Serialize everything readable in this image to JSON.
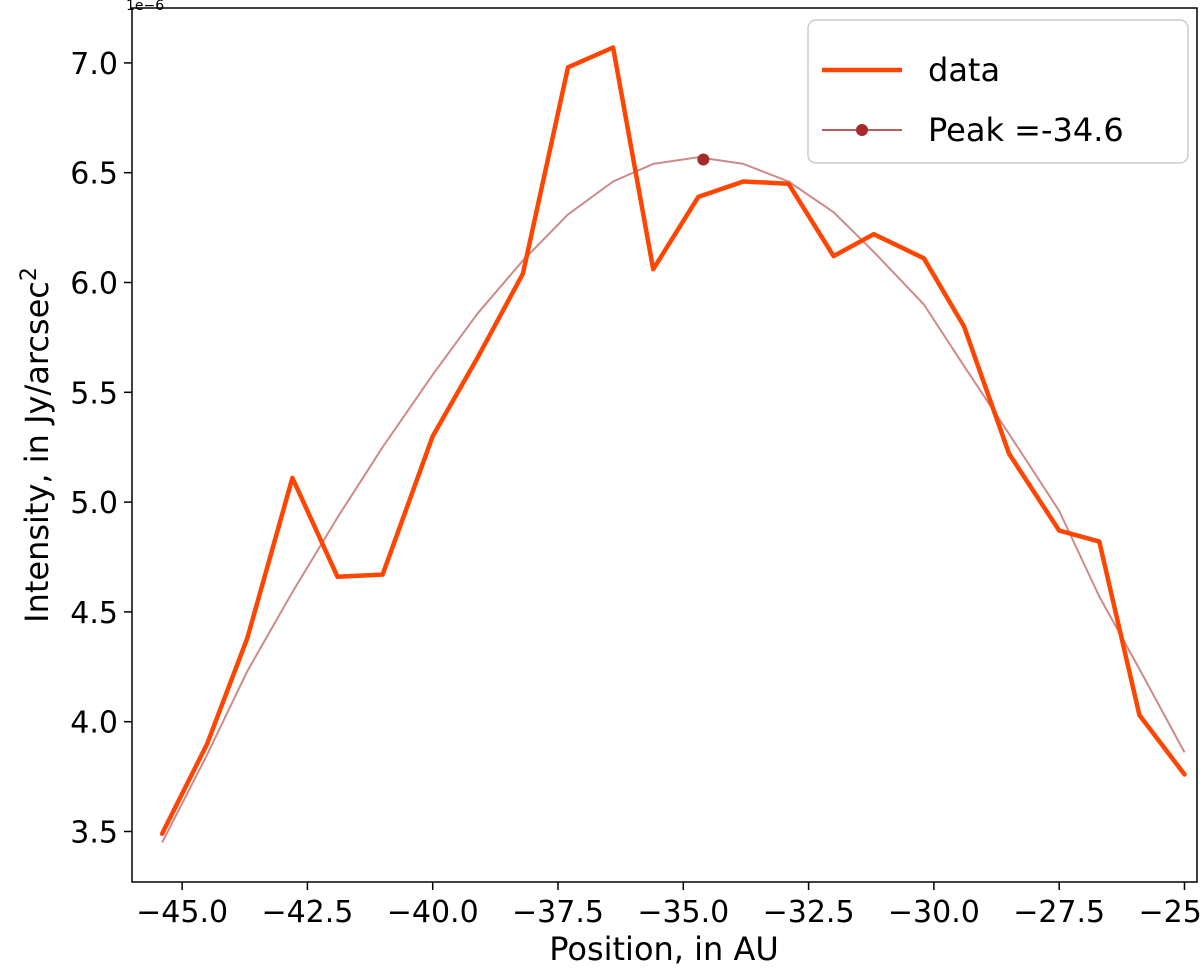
{
  "chart_data": {
    "type": "line",
    "xlabel": "Position, in AU",
    "ylabel": "Intensity, in Jy/arcsec",
    "ylabel_superscript": "2",
    "y_offset_label": "1e−6",
    "xlim": [
      -46.0,
      -24.75
    ],
    "ylim": [
      3.27,
      7.25
    ],
    "x_ticks": [
      -45.0,
      -42.5,
      -40.0,
      -37.5,
      -35.0,
      -32.5,
      -30.0,
      -27.5,
      -25.0
    ],
    "x_tick_labels": [
      "−45.0",
      "−42.5",
      "−40.0",
      "−37.5",
      "−35.0",
      "−32.5",
      "−30.0",
      "−27.5",
      "−25.0"
    ],
    "y_ticks": [
      3.5,
      4.0,
      4.5,
      5.0,
      5.5,
      6.0,
      6.5,
      7.0
    ],
    "y_tick_labels": [
      "3.5",
      "4.0",
      "4.5",
      "5.0",
      "5.5",
      "6.0",
      "6.5",
      "7.0"
    ],
    "grid": false,
    "legend_position": "top-right",
    "series": [
      {
        "name": "data",
        "color": "#ff4500",
        "x": [
          -45.4,
          -44.5,
          -43.7,
          -42.8,
          -41.9,
          -41.0,
          -40.0,
          -39.1,
          -38.2,
          -37.3,
          -36.4,
          -35.6,
          -34.7,
          -33.8,
          -32.9,
          -32.0,
          -31.2,
          -30.2,
          -29.4,
          -28.5,
          -27.5,
          -26.7,
          -25.9,
          -25.0
        ],
        "y": [
          3.49,
          3.9,
          4.38,
          5.11,
          4.66,
          4.67,
          5.3,
          5.66,
          6.04,
          6.98,
          7.07,
          6.06,
          6.39,
          6.46,
          6.45,
          6.12,
          6.22,
          6.11,
          5.8,
          5.22,
          4.87,
          4.82,
          4.03,
          3.76
        ]
      },
      {
        "name": "Peak =-34.6",
        "color": "#a52a2a",
        "x": [
          -45.4,
          -44.5,
          -43.7,
          -42.8,
          -41.9,
          -41.0,
          -40.0,
          -39.1,
          -38.2,
          -37.3,
          -36.4,
          -35.6,
          -34.7,
          -33.8,
          -32.9,
          -32.0,
          -31.2,
          -30.2,
          -29.4,
          -28.5,
          -27.5,
          -26.7,
          -25.9,
          -25.0
        ],
        "y": [
          3.45,
          3.85,
          4.23,
          4.59,
          4.93,
          5.25,
          5.58,
          5.86,
          6.1,
          6.31,
          6.46,
          6.54,
          6.57,
          6.54,
          6.46,
          6.32,
          6.14,
          5.9,
          5.62,
          5.31,
          4.96,
          4.57,
          4.24,
          3.86
        ]
      }
    ],
    "peak_marker": {
      "x": -34.6,
      "y": 6.56,
      "color": "#a52a2a"
    }
  }
}
